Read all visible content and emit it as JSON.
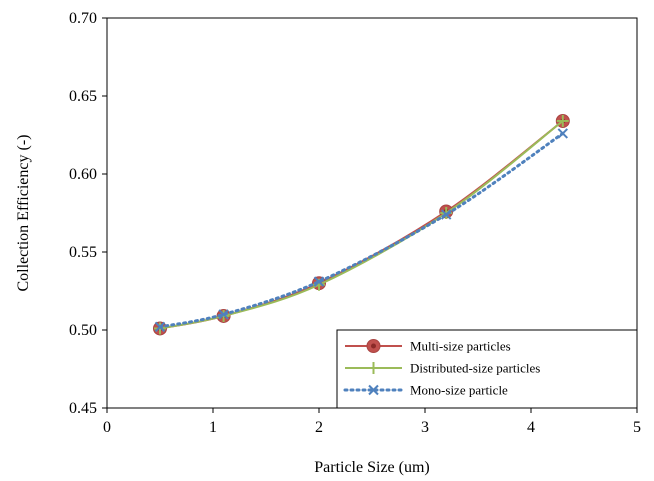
{
  "chart_data": {
    "type": "line",
    "title": "",
    "xlabel": "Particle Size (um)",
    "ylabel": "Collection Efficiency (-)",
    "xlim": [
      0,
      5
    ],
    "ylim": [
      0.45,
      0.7
    ],
    "xticks": [
      0,
      1,
      2,
      3,
      4,
      5
    ],
    "xtick_labels": [
      "0",
      "1",
      "2",
      "3",
      "4",
      "5"
    ],
    "yticks": [
      0.45,
      0.5,
      0.55,
      0.6,
      0.65,
      0.7
    ],
    "ytick_labels": [
      "0.45",
      "0.50",
      "0.55",
      "0.60",
      "0.65",
      "0.70"
    ],
    "grid": false,
    "legend_position": "bottom-right",
    "series": [
      {
        "name": "Multi-size particles",
        "color": "#c0504d",
        "marker": "circle",
        "line_style": "solid",
        "x": [
          0.5,
          1.1,
          2.0,
          3.2,
          4.3
        ],
        "y": [
          0.501,
          0.509,
          0.53,
          0.576,
          0.634
        ]
      },
      {
        "name": "Distributed-size particles",
        "color": "#9bbb59",
        "marker": "plus",
        "line_style": "solid",
        "x": [
          0.5,
          1.1,
          2.0,
          3.2,
          4.3
        ],
        "y": [
          0.501,
          0.509,
          0.529,
          0.575,
          0.634
        ]
      },
      {
        "name": "Mono-size particle",
        "color": "#4f81bd",
        "marker": "x",
        "line_style": "dotted",
        "x": [
          0.5,
          1.1,
          2.0,
          3.2,
          4.3
        ],
        "y": [
          0.502,
          0.51,
          0.531,
          0.574,
          0.626
        ]
      }
    ]
  }
}
